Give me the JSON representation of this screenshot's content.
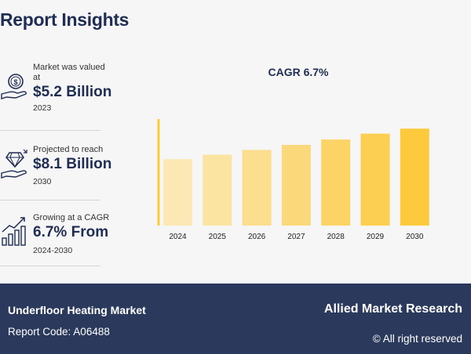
{
  "title": "Report Insights",
  "stats": [
    {
      "label": "Market was valued at",
      "value": "$5.2 Billion",
      "year": "2023",
      "icon": "money-hand-icon"
    },
    {
      "label": "Projected to reach",
      "value": "$8.1 Billion",
      "year": "2030",
      "icon": "diamond-hand-icon"
    },
    {
      "label": "Growing at a CAGR",
      "value": "6.7% From",
      "year": "2024-2030",
      "icon": "growth-chart-icon"
    }
  ],
  "chart_data": {
    "type": "bar",
    "title": "CAGR 6.7%",
    "categories": [
      "2024",
      "2025",
      "2026",
      "2027",
      "2028",
      "2029",
      "2030"
    ],
    "values": [
      5.55,
      5.92,
      6.32,
      6.74,
      7.19,
      7.68,
      8.1
    ],
    "ylim": [
      0,
      8.9
    ],
    "colors": [
      "#fbe8b4",
      "#fbe3a2",
      "#fbde8e",
      "#fbd97a",
      "#fcd466",
      "#fccf52",
      "#fdca3e"
    ],
    "axis_color": "#fccb3d",
    "grid": false
  },
  "footer": {
    "market": "Underfloor Heating Market",
    "report_code": "Report Code: A06488",
    "brand": "Allied Market Research",
    "rights": "© All right reserved"
  }
}
